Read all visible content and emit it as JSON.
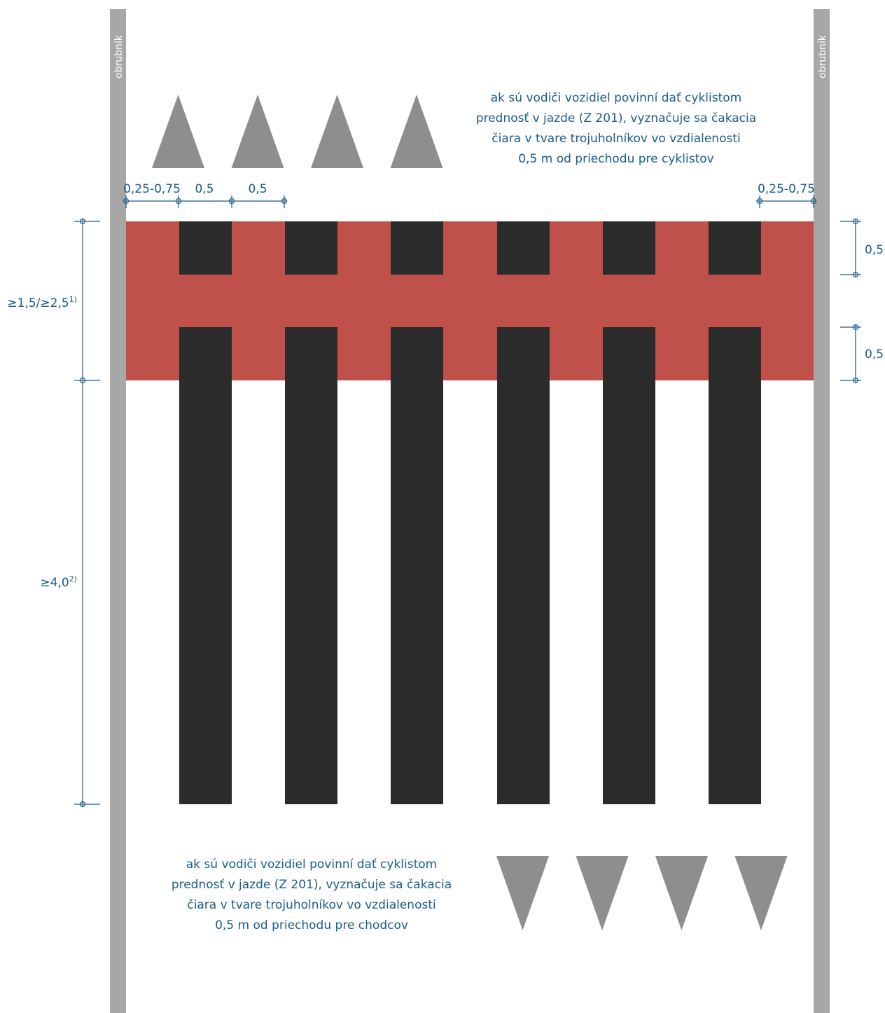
{
  "curb_label": "obrubník",
  "colors": {
    "curb": "#a7a7a7",
    "red_band": "#c0504a",
    "stripe": "#2b2b2b",
    "triangle": "#8c8f8d",
    "dimension": "#1a5c8a"
  },
  "top_note": {
    "lines": [
      "ak sú vodiči vozidiel povinní dať cyklistom",
      "prednosť v jazde (Z 201), vyznačuje sa čakacia",
      "čiara v tvare trojuholníkov vo vzdialenosti",
      "0,5 m od priechodu pre cyklistov"
    ]
  },
  "bottom_note": {
    "lines": [
      "ak sú vodiči vozidiel povinní dať cyklistom",
      "prednosť v jazde (Z 201), vyznačuje sa čakacia",
      "čiara v tvare trojuholníkov vo vzdialenosti",
      "0,5 m od priechodu pre chodcov"
    ]
  },
  "dimensions": {
    "top_left": [
      "0,25-0,75",
      "0,5",
      "0,5"
    ],
    "top_right": "0,25-0,75",
    "right_upper": "0,5",
    "right_lower": "0,5",
    "left_band": {
      "text": "≥1,5/≥2,5",
      "sup": "1)"
    },
    "left_long": {
      "text": "≥4,0",
      "sup": "2)"
    }
  },
  "stripe_count": 6,
  "triangle_count_top": 4,
  "triangle_count_bottom": 4
}
